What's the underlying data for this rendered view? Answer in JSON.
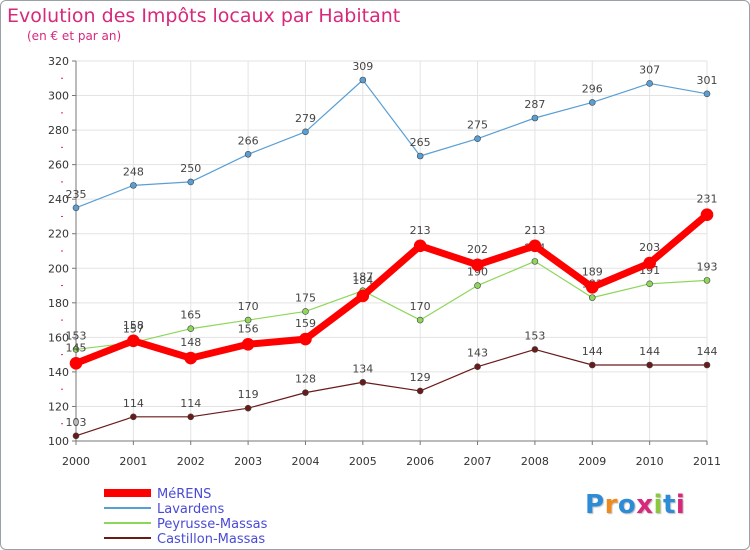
{
  "header": {
    "title": "Evolution des Impôts locaux par Habitant",
    "subtitle": "(en € et par an)"
  },
  "logo": {
    "text": "Proxiti",
    "colors": [
      "#2e8bd6",
      "#f08a1c",
      "#2e8bd6",
      "#d7287c",
      "#8dc63f",
      "#2e8bd6",
      "#d7287c"
    ]
  },
  "chart_data": {
    "type": "line",
    "title": "Evolution des Impôts locaux par Habitant",
    "subtitle": "(en € et par an)",
    "xlabel": "",
    "ylabel": "",
    "categories": [
      "2000",
      "2001",
      "2002",
      "2003",
      "2004",
      "2005",
      "2006",
      "2007",
      "2008",
      "2009",
      "2010",
      "2011"
    ],
    "ylim": [
      100,
      320
    ],
    "yticks": [
      100,
      120,
      140,
      160,
      180,
      200,
      220,
      240,
      260,
      280,
      300,
      320
    ],
    "grid": true,
    "legend_position": "bottom-left",
    "series": [
      {
        "name": "Lavardens",
        "color": "#5a9fd4",
        "values": [
          235,
          248,
          250,
          266,
          279,
          309,
          265,
          275,
          287,
          296,
          307,
          301
        ]
      },
      {
        "name": "Peyrusse-Massas",
        "color": "#8ed65a",
        "values": [
          153,
          157,
          165,
          170,
          175,
          187,
          170,
          190,
          204,
          183,
          191,
          193
        ]
      },
      {
        "name": "Castillon-Massas",
        "color": "#6b1a1a",
        "values": [
          103,
          114,
          114,
          119,
          128,
          134,
          129,
          143,
          153,
          144,
          144,
          144
        ]
      },
      {
        "name": "MéRENS",
        "color": "#ff0000",
        "values": [
          145,
          158,
          148,
          156,
          159,
          184,
          213,
          202,
          213,
          189,
          203,
          231
        ]
      }
    ],
    "legend": [
      "MéRENS",
      "Lavardens",
      "Peyrusse-Massas",
      "Castillon-Massas"
    ]
  }
}
